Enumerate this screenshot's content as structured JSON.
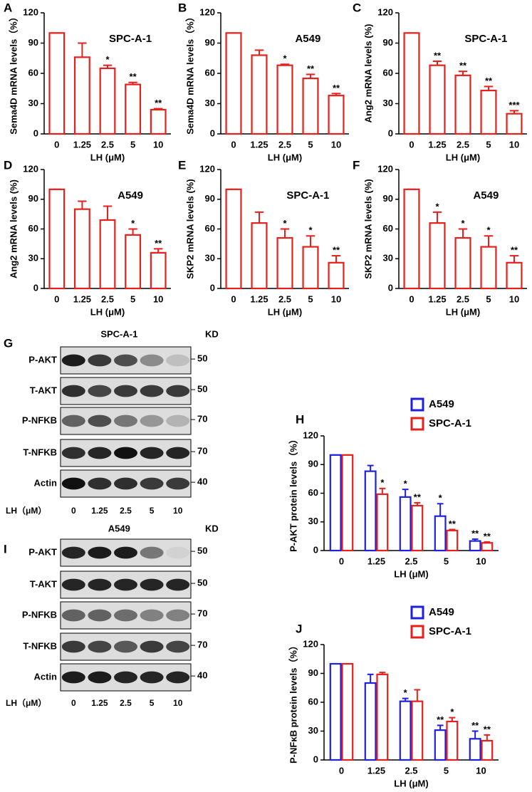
{
  "chart_data": [
    {
      "type": "bar",
      "panel": "A",
      "title": "SPC-A-1",
      "ylabel": "Sema4D mRNA levels（%）",
      "xlabel": "LH (μM)",
      "categories": [
        "0",
        "1.25",
        "2.5",
        "5",
        "10"
      ],
      "ylim": [
        0,
        120
      ],
      "yticks": [
        0,
        30,
        60,
        90,
        120
      ],
      "series": [
        {
          "color": "#e8201c",
          "values": [
            100,
            76,
            65,
            49,
            24
          ],
          "errors": [
            0,
            14,
            3,
            2,
            1
          ],
          "annotations": [
            null,
            null,
            "*",
            "**",
            "**"
          ]
        }
      ]
    },
    {
      "type": "bar",
      "panel": "B",
      "title": "A549",
      "ylabel": "Sema4D mRNA levels（%）",
      "xlabel": "LH (μM)",
      "categories": [
        "0",
        "1.25",
        "2.5",
        "5",
        "10"
      ],
      "ylim": [
        0,
        120
      ],
      "yticks": [
        0,
        30,
        60,
        90,
        120
      ],
      "series": [
        {
          "color": "#e8201c",
          "values": [
            100,
            78,
            68,
            55,
            38
          ],
          "errors": [
            0,
            5,
            1,
            4,
            2
          ],
          "annotations": [
            null,
            null,
            "*",
            "**",
            "**"
          ]
        }
      ]
    },
    {
      "type": "bar",
      "panel": "C",
      "title": "SPC-A-1",
      "ylabel": "Ang2 mRNA levels (%)",
      "xlabel": "LH (μM)",
      "categories": [
        "0",
        "1.25",
        "2.5",
        "5",
        "10"
      ],
      "ylim": [
        0,
        120
      ],
      "yticks": [
        0,
        30,
        60,
        90,
        120
      ],
      "series": [
        {
          "color": "#e8201c",
          "values": [
            100,
            68,
            58,
            43,
            20
          ],
          "errors": [
            0,
            4,
            4,
            4,
            3
          ],
          "annotations": [
            null,
            "**",
            "**",
            "**",
            "***"
          ]
        }
      ]
    },
    {
      "type": "bar",
      "panel": "D",
      "title": "A549",
      "ylabel": "Ang2 mRNA levels (%)",
      "xlabel": "LH (μM)",
      "categories": [
        "0",
        "1.25",
        "2.5",
        "5",
        "10"
      ],
      "ylim": [
        0,
        120
      ],
      "yticks": [
        0,
        30,
        60,
        90,
        120
      ],
      "series": [
        {
          "color": "#e8201c",
          "values": [
            100,
            80,
            69,
            54,
            36
          ],
          "errors": [
            0,
            8,
            14,
            6,
            4
          ],
          "annotations": [
            null,
            null,
            null,
            "*",
            "**"
          ]
        }
      ]
    },
    {
      "type": "bar",
      "panel": "E",
      "title": "SPC-A-1",
      "ylabel": "SKP2 mRNA levels (%)",
      "xlabel": "LH (μM)",
      "categories": [
        "0",
        "1.25",
        "2.5",
        "5",
        "10"
      ],
      "ylim": [
        0,
        120
      ],
      "yticks": [
        0,
        30,
        60,
        90,
        120
      ],
      "series": [
        {
          "color": "#e8201c",
          "values": [
            100,
            66,
            51,
            42,
            26
          ],
          "errors": [
            0,
            11,
            9,
            11,
            7
          ],
          "annotations": [
            null,
            null,
            "*",
            "*",
            "**"
          ]
        }
      ]
    },
    {
      "type": "bar",
      "panel": "F",
      "title": "A549",
      "ylabel": "SKP2 mRNA levels (%)",
      "xlabel": "LH (μM)",
      "categories": [
        "0",
        "1.25",
        "2.5",
        "5",
        "10"
      ],
      "ylim": [
        0,
        120
      ],
      "yticks": [
        0,
        30,
        60,
        90,
        120
      ],
      "series": [
        {
          "color": "#e8201c",
          "values": [
            100,
            66,
            51,
            42,
            26
          ],
          "errors": [
            0,
            11,
            9,
            11,
            7
          ],
          "annotations": [
            null,
            "*",
            "*",
            "*",
            "**"
          ]
        }
      ]
    },
    {
      "type": "bar",
      "panel": "H",
      "ylabel": "P-AKT protein levels（%）",
      "xlabel": "LH (μM)",
      "categories": [
        "0",
        "1.25",
        "2.5",
        "5",
        "10"
      ],
      "ylim": [
        0,
        120
      ],
      "yticks": [
        0,
        30,
        60,
        90,
        120
      ],
      "series": [
        {
          "name": "A549",
          "color": "#1f1fe0",
          "values": [
            100,
            83,
            56,
            36,
            10
          ],
          "errors": [
            0,
            6,
            8,
            13,
            2
          ],
          "annotations": [
            null,
            null,
            "*",
            "*",
            "**"
          ]
        },
        {
          "name": "SPC-A-1",
          "color": "#e8201c",
          "values": [
            100,
            59,
            47,
            21,
            8
          ],
          "errors": [
            0,
            6,
            3,
            1,
            1
          ],
          "annotations": [
            null,
            "*",
            "**",
            "**",
            "**"
          ]
        }
      ]
    },
    {
      "type": "bar",
      "panel": "J",
      "ylabel": "P-NFκB protein levels（%）",
      "xlabel": "LH (μM)",
      "categories": [
        "0",
        "1.25",
        "2.5",
        "5",
        "10"
      ],
      "ylim": [
        0,
        120
      ],
      "yticks": [
        0,
        30,
        60,
        90,
        120
      ],
      "series": [
        {
          "name": "A549",
          "color": "#1f1fe0",
          "values": [
            100,
            80,
            61,
            31,
            22
          ],
          "errors": [
            0,
            9,
            3,
            5,
            8
          ],
          "annotations": [
            null,
            null,
            "*",
            "**",
            "**"
          ]
        },
        {
          "name": "SPC-A-1",
          "color": "#e8201c",
          "values": [
            100,
            89,
            61,
            40,
            20
          ],
          "errors": [
            0,
            2,
            12,
            4,
            6
          ],
          "annotations": [
            null,
            null,
            null,
            "*",
            "**"
          ]
        }
      ]
    }
  ],
  "blots": [
    {
      "panel": "G",
      "title": "SPC-A-1",
      "unit": "KD",
      "lane_title": "LH（μM）",
      "lanes": [
        "0",
        "1.25",
        "2.5",
        "5",
        "10"
      ],
      "rows": [
        {
          "label": "P-AKT",
          "marker": 50
        },
        {
          "label": "T-AKT",
          "marker": 50
        },
        {
          "label": "P-NFKB",
          "marker": 70
        },
        {
          "label": "T-NFKB",
          "marker": 70
        },
        {
          "label": "Actin",
          "marker": 40
        }
      ]
    },
    {
      "panel": "I",
      "title": "A549",
      "unit": "KD",
      "lane_title": "LH（μM）",
      "lanes": [
        "0",
        "1.25",
        "2.5",
        "5",
        "10"
      ],
      "rows": [
        {
          "label": "P-AKT",
          "marker": 50
        },
        {
          "label": "T-AKT",
          "marker": 50
        },
        {
          "label": "P-NFKB",
          "marker": 70
        },
        {
          "label": "T-NFKB",
          "marker": 70
        },
        {
          "label": "Actin",
          "marker": 40
        }
      ]
    }
  ]
}
